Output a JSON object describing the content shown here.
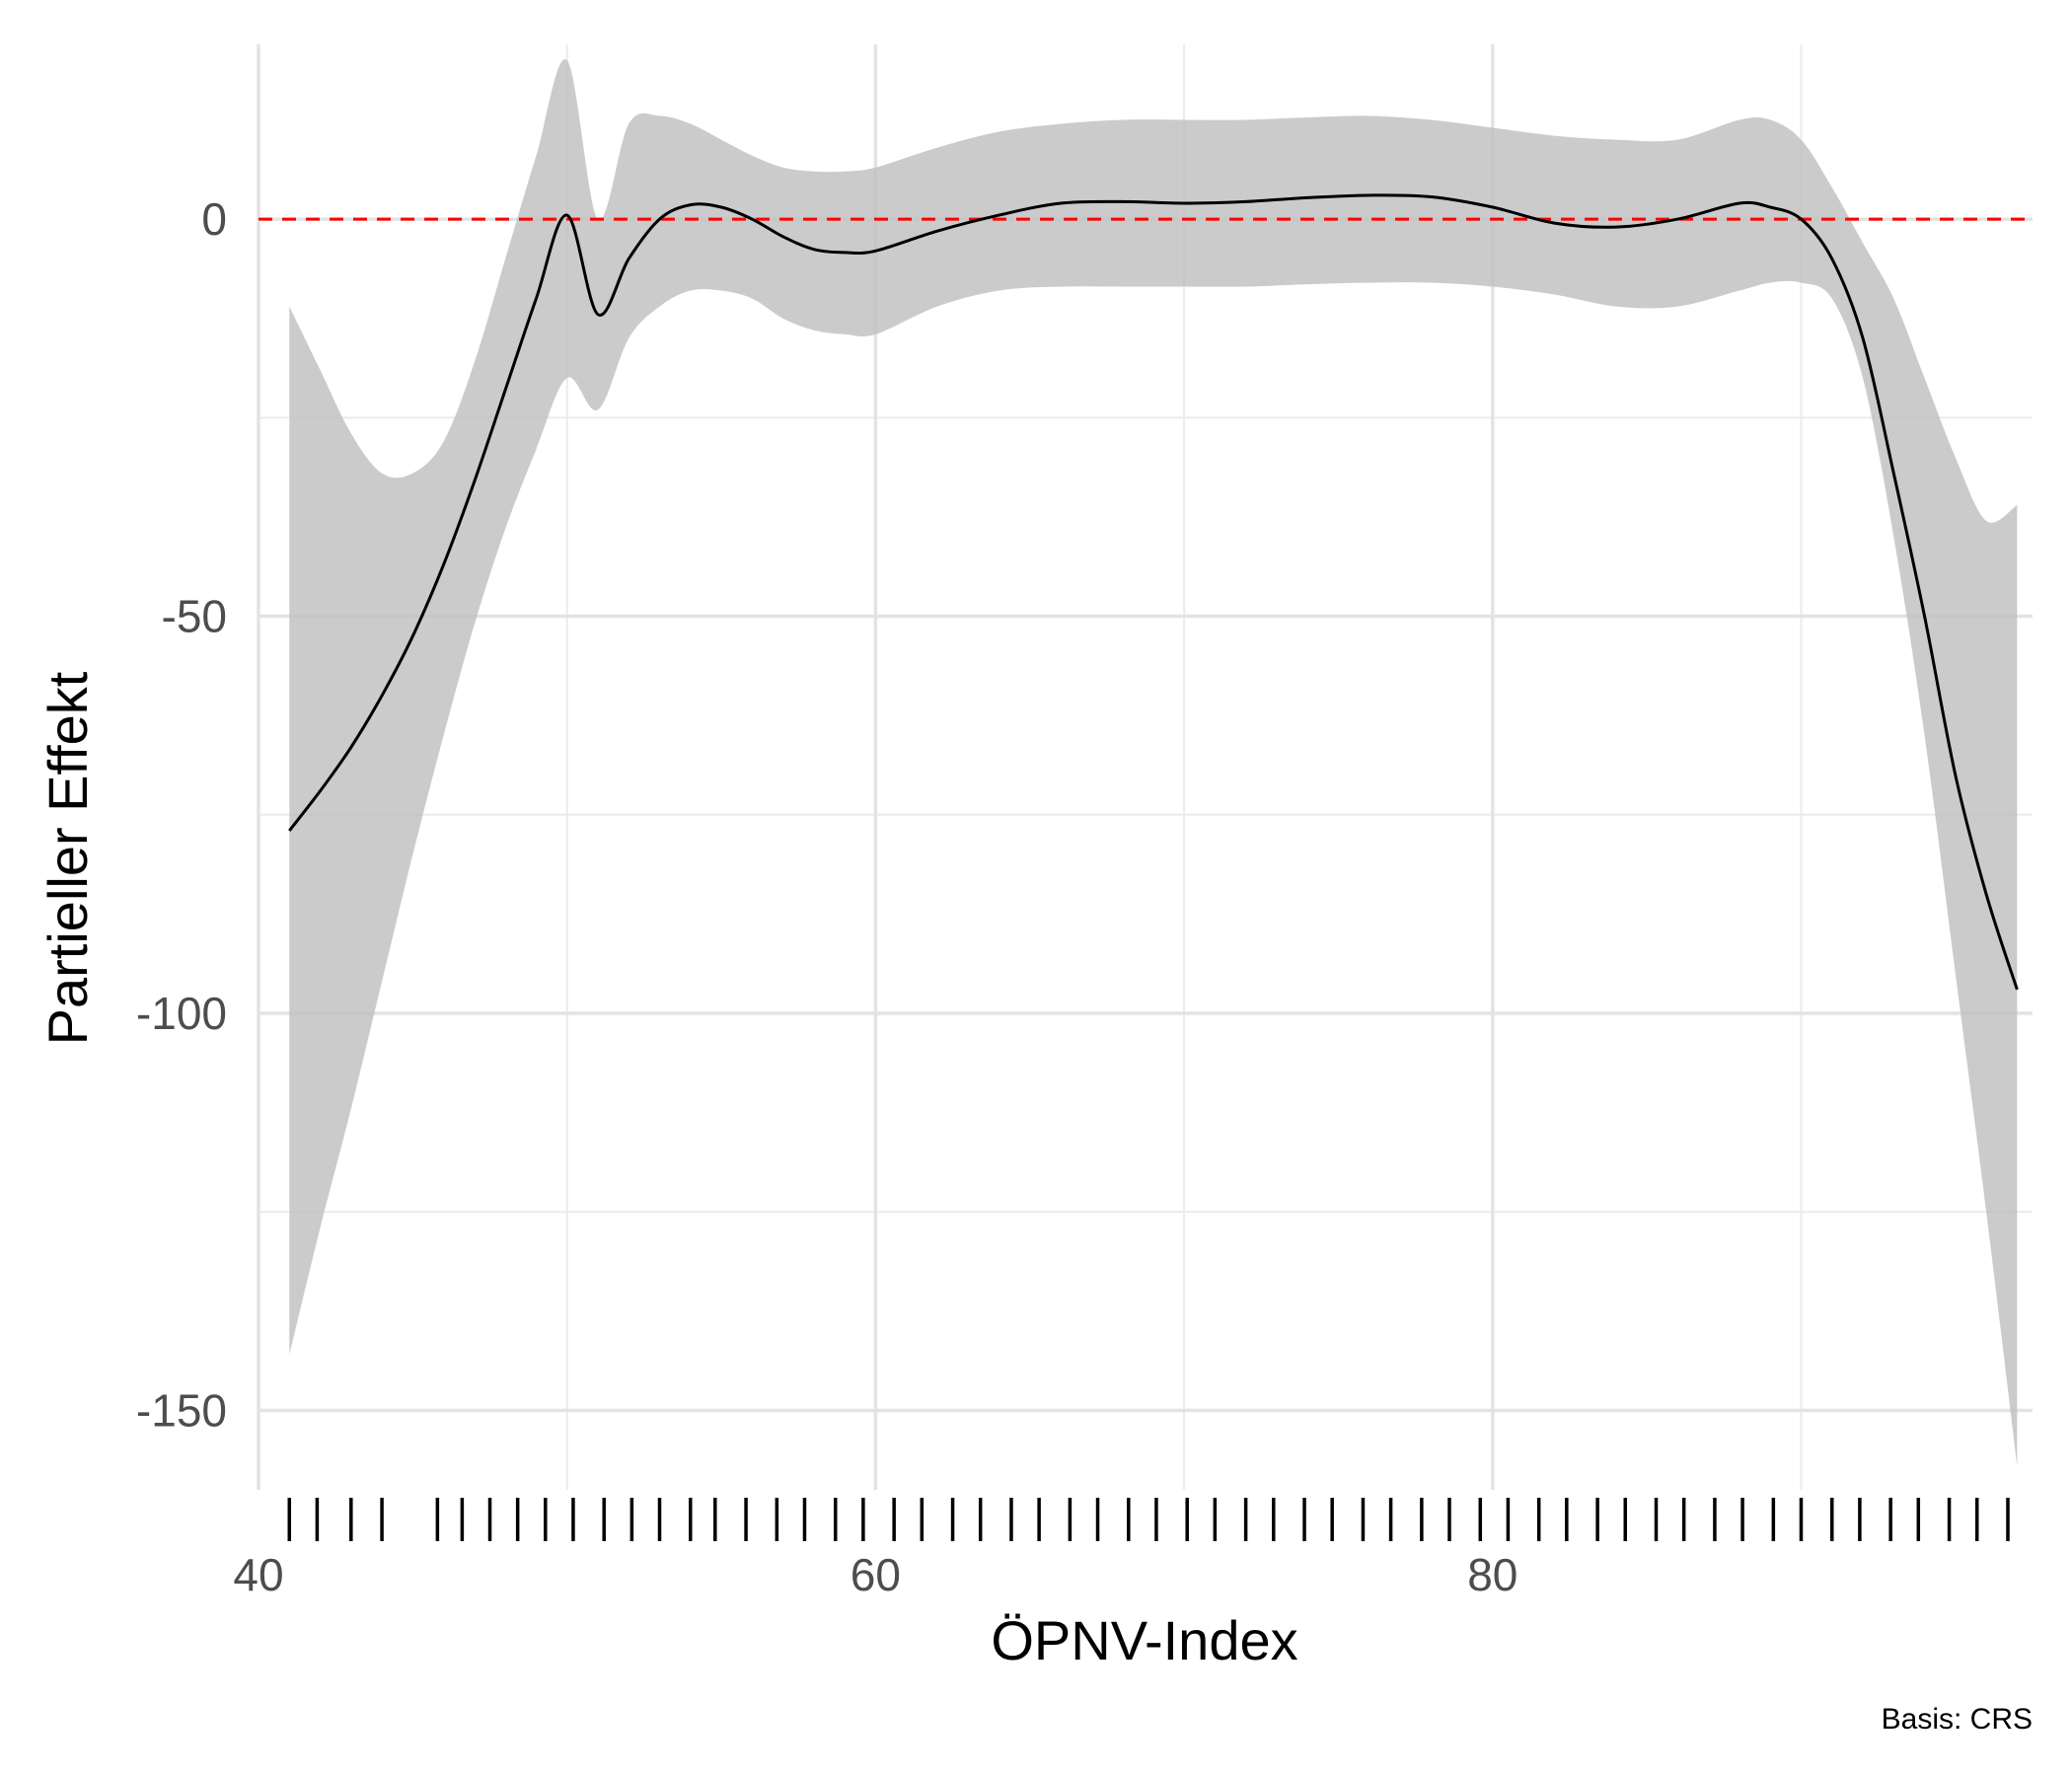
{
  "chart_data": {
    "type": "line",
    "title": "",
    "xlabel": "ÖPNV-Index",
    "ylabel": "Partieller Effekt",
    "caption": "Basis: CRS",
    "xlim": [
      40,
      97.5
    ],
    "ylim": [
      -160,
      22
    ],
    "x_ticks": [
      40,
      60,
      80
    ],
    "y_ticks": [
      0,
      -50,
      -100,
      -150
    ],
    "x_minor_grid": [
      50,
      70,
      90
    ],
    "y_minor_grid": [
      -25,
      -75,
      -125
    ],
    "grid": true,
    "reference_line": {
      "y": 0,
      "color": "#ff0000",
      "style": "dashed"
    },
    "series": [
      {
        "type": "line",
        "x": [
          41,
          42,
          43,
          44,
          45,
          46,
          47,
          48,
          49,
          50,
          51,
          52,
          53,
          54,
          55,
          56,
          57,
          58,
          59,
          60,
          62,
          64,
          66,
          68,
          70,
          72,
          74,
          76,
          78,
          80,
          82,
          84,
          86,
          88,
          89,
          90,
          91,
          92,
          93,
          94,
          95,
          96,
          97
        ],
        "y": [
          -77,
          -72,
          -66.5,
          -60,
          -52.5,
          -43.5,
          -33,
          -21.5,
          -10,
          0.5,
          -12,
          -5,
          0,
          1.8,
          1.5,
          0,
          -2.2,
          -3.8,
          -4.2,
          -4,
          -1.5,
          0.5,
          2,
          2.2,
          2,
          2.2,
          2.7,
          3,
          2.8,
          1.5,
          -0.5,
          -1,
          0,
          2,
          1.5,
          0,
          -5,
          -15,
          -32,
          -50,
          -70,
          -85,
          -97
        ],
        "color": "#000000"
      },
      {
        "type": "ribbon",
        "x": [
          41,
          42,
          43,
          44,
          45,
          46,
          47,
          48,
          49,
          50,
          51,
          52,
          53,
          54,
          55,
          56,
          57,
          58,
          59,
          60,
          62,
          64,
          66,
          68,
          70,
          72,
          74,
          76,
          78,
          80,
          82,
          84,
          86,
          88,
          89,
          90,
          91,
          92,
          93,
          94,
          95,
          96,
          97
        ],
        "upper": [
          -11,
          -19,
          -27,
          -32,
          -32,
          -28,
          -18,
          -5,
          8,
          20,
          0,
          12,
          13,
          12,
          10,
          8,
          6.5,
          6,
          6,
          6.5,
          9,
          11,
          12,
          12.5,
          12.5,
          12.5,
          12.8,
          13,
          12.5,
          11.5,
          10.5,
          10,
          10,
          12.5,
          12.5,
          10,
          4,
          -3,
          -10,
          -20,
          -30,
          -38,
          -36
        ],
        "lower": [
          -143,
          -127,
          -112,
          -96,
          -80,
          -65,
          -51,
          -39,
          -29,
          -20,
          -24,
          -15,
          -11,
          -9,
          -9,
          -10,
          -12.5,
          -14,
          -14.5,
          -14.5,
          -11,
          -9,
          -8.5,
          -8.5,
          -8.5,
          -8.5,
          -8.2,
          -8,
          -8,
          -8.5,
          -9.5,
          -11,
          -11,
          -9,
          -8,
          -8,
          -10,
          -20,
          -40,
          -65,
          -95,
          -125,
          -157
        ],
        "color": "#bebebe"
      }
    ],
    "rug": [
      41,
      41.9,
      43,
      44,
      45.8,
      46.6,
      47.5,
      48.4,
      49.3,
      50.2,
      51.2,
      52.1,
      53,
      54,
      54.8,
      55.8,
      56.8,
      57.7,
      58.7,
      59.6,
      60.6,
      61.5,
      62.5,
      63.4,
      64.4,
      65.3,
      66.3,
      67.2,
      68.2,
      69.1,
      70.1,
      71,
      72,
      72.9,
      73.9,
      74.8,
      75.8,
      76.7,
      77.7,
      78.6,
      79.6,
      80.5,
      81.5,
      82.4,
      83.4,
      84.3,
      85.3,
      86.2,
      87.2,
      88.1,
      89.1,
      90,
      91,
      91.9,
      92.9,
      93.8,
      94.8,
      95.7,
      96.7
    ]
  }
}
